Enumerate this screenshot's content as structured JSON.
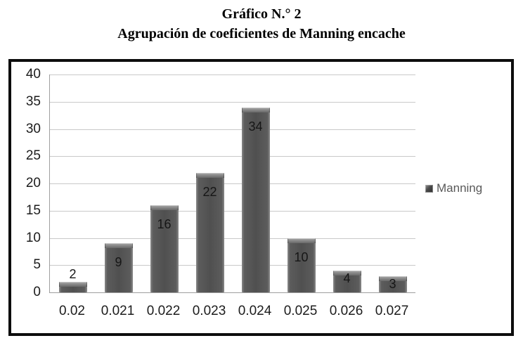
{
  "title": {
    "line1": "Gráfico N.° 2",
    "line2": "Agrupación de coeficientes de Manning encache"
  },
  "legend": {
    "label": "Manning"
  },
  "chart_data": {
    "type": "bar",
    "title": "Gráfico N.° 2",
    "subtitle": "Agrupación de coeficientes de Manning encache",
    "categories": [
      "0.02",
      "0.021",
      "0.022",
      "0.023",
      "0.024",
      "0.025",
      "0.026",
      "0.027"
    ],
    "series": [
      {
        "name": "Manning",
        "values": [
          2,
          9,
          16,
          22,
          34,
          10,
          4,
          3
        ]
      }
    ],
    "data_labels": [
      2,
      9,
      16,
      22,
      34,
      10,
      4,
      3
    ],
    "xlabel": "",
    "ylabel": "",
    "ylim": [
      0,
      40
    ],
    "yticks": [
      0,
      5,
      10,
      15,
      20,
      25,
      30,
      35,
      40
    ],
    "grid": true,
    "legend_position": "right-middle",
    "bar_color": "#595959",
    "gridline_color": "#c9c9c9",
    "axis_color": "#9e9e9e",
    "frame_border_color": "#0d0d0d",
    "tick_label_color": "#1c1c1c",
    "legend_text_color": "#595959"
  }
}
